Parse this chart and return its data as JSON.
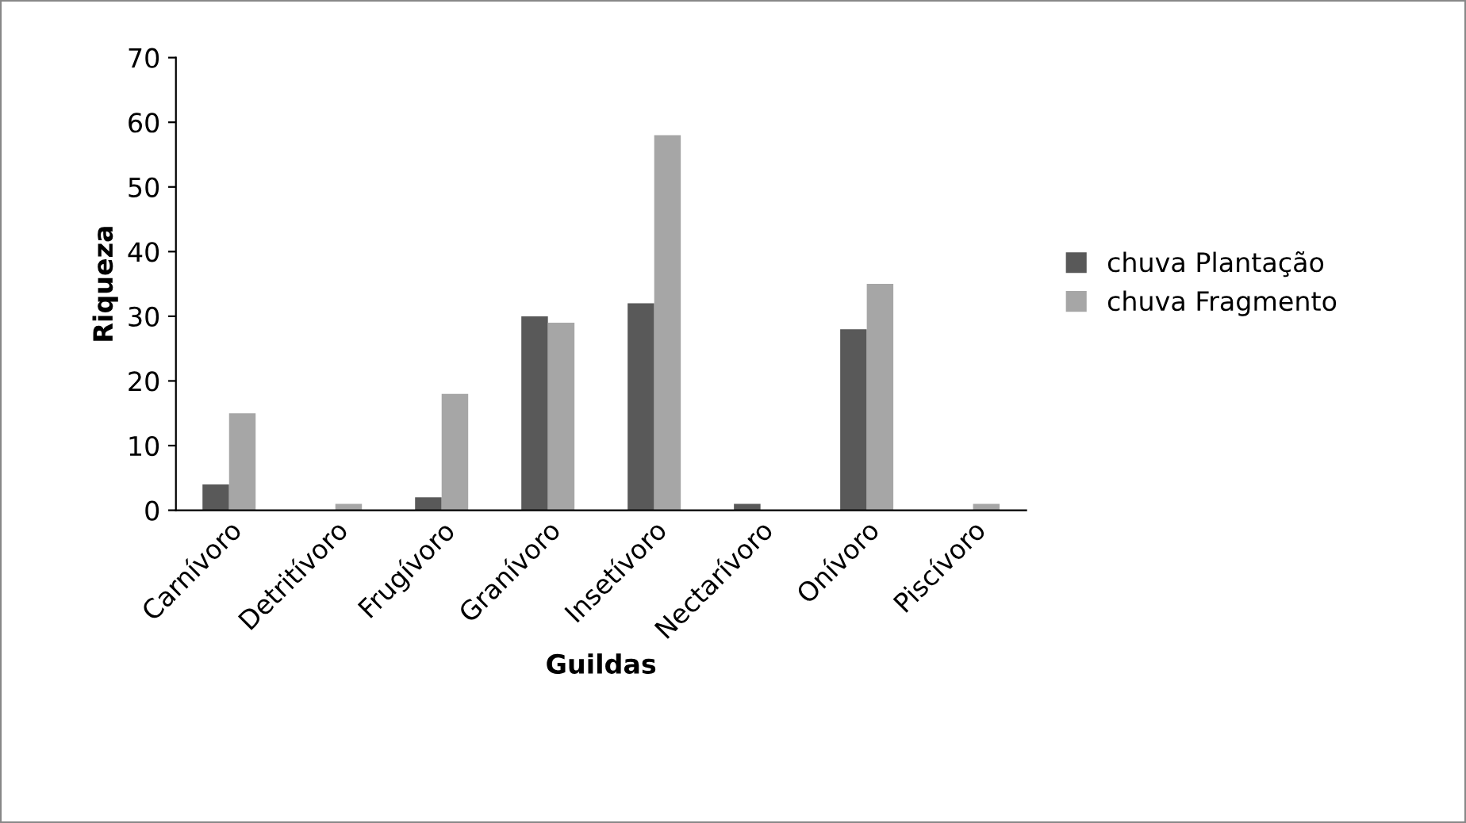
{
  "chart_data": {
    "type": "bar",
    "xlabel": "Guildas",
    "ylabel": "Riqueza",
    "categories": [
      "Carnívoro",
      "Detritívoro",
      "Frugívoro",
      "Granívoro",
      "Insetívoro",
      "Nectarívoro",
      "Onívoro",
      "Piscívoro"
    ],
    "series": [
      {
        "name": "chuva Plantação",
        "color": "#595959",
        "values": [
          4,
          0,
          2,
          30,
          32,
          1,
          28,
          0
        ]
      },
      {
        "name": "chuva Fragmento",
        "color": "#a6a6a6",
        "values": [
          15,
          1,
          18,
          29,
          58,
          0,
          35,
          1
        ]
      }
    ],
    "ylim": [
      0,
      70
    ],
    "yticks": [
      0,
      10,
      20,
      30,
      40,
      50,
      60,
      70
    ],
    "grid": false,
    "legend": "right"
  }
}
